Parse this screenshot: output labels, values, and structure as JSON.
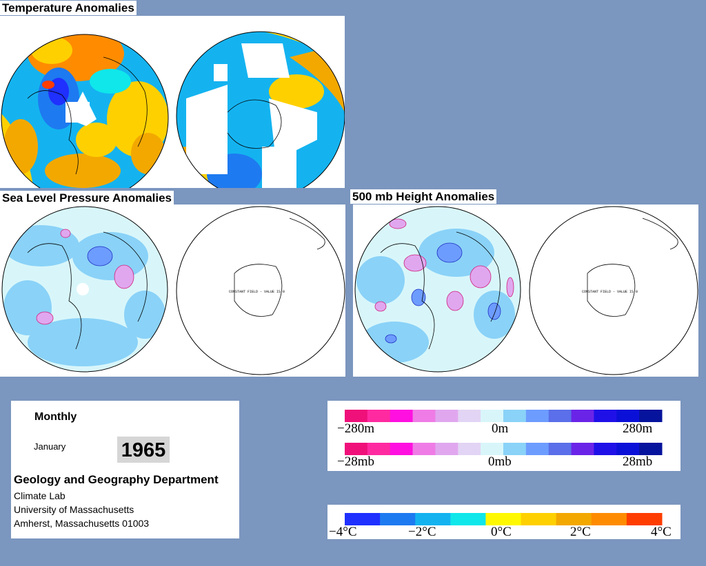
{
  "titles": {
    "temperature": "Temperature Anomalies",
    "slp": "Sea Level Pressure Anomalies",
    "height500": "500 mb Height Anomalies"
  },
  "constant_field_note": "CONSTANT FIELD - VALUE IS 0",
  "info": {
    "period": "Monthly",
    "month": "January",
    "year": "1965",
    "department": "Geology and Geography Department",
    "lab": "Climate Lab",
    "university": "University of Massachusetts",
    "city": "Amherst, Massachusetts 01003"
  },
  "legends": {
    "height": {
      "min": "−280m",
      "mid": "0m",
      "max": "280m"
    },
    "pressure": {
      "min": "−28mb",
      "mid": "0mb",
      "max": "28mb"
    },
    "temperature": {
      "labels": [
        "−4°C",
        "−2°C",
        "0°C",
        "2°C",
        "4°C"
      ]
    }
  },
  "colors": {
    "background": "#7b96bf",
    "anomaly_scale": [
      "#f0107a",
      "#ff2aa0",
      "#ff10e0",
      "#ef7ce6",
      "#e0a7ef",
      "#e2d4f4",
      "#d8f6fa",
      "#8ad2f8",
      "#6d9cff",
      "#5a6fe9",
      "#6a24e8",
      "#1f10e8",
      "#0b10d8",
      "#06139c"
    ],
    "temp_scale": [
      "#1f30ff",
      "#1e7af0",
      "#14b3f0",
      "#0fe7ea",
      "#fff800",
      "#ffd000",
      "#f3a800",
      "#ff8c00",
      "#ff3d00"
    ]
  }
}
